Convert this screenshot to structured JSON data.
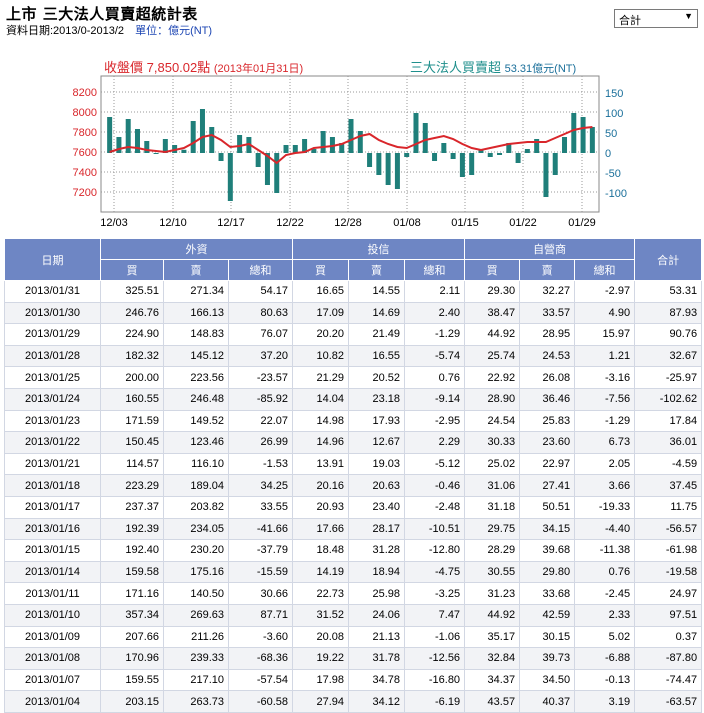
{
  "header": {
    "title": "上市 三大法人買賣超統計表",
    "date_label": "資料日期:2013/0-2013/2",
    "unit_label": "單位：億元(NT)",
    "selector_value": "合計"
  },
  "chart_data": {
    "type": "bar",
    "close_label": "收盤價",
    "close_value": "7,850.02點",
    "close_date": "(2013年01月31日)",
    "net_label": "三大法人買賣超",
    "net_value": "53.31億元(NT)",
    "y_left_ticks": [
      "8200",
      "8000",
      "7800",
      "7600",
      "7400",
      "7200"
    ],
    "y_right_ticks": [
      "150",
      "100",
      "50",
      "0",
      "-50",
      "-100"
    ],
    "x_ticks": [
      "12/03",
      "12/10",
      "12/17",
      "12/22",
      "12/28",
      "01/08",
      "01/15",
      "01/22",
      "01/29"
    ],
    "bars": [
      90,
      40,
      85,
      60,
      30,
      -2,
      35,
      20,
      8,
      80,
      110,
      65,
      -20,
      -120,
      45,
      40,
      -35,
      -80,
      -100,
      20,
      20,
      35,
      10,
      55,
      40,
      25,
      85,
      55,
      -35,
      -55,
      -80,
      -90,
      -10,
      100,
      75,
      -20,
      25,
      -15,
      -60,
      -55,
      10,
      -10,
      -5,
      25,
      -25,
      10,
      35,
      -110,
      -55,
      40,
      100,
      90,
      65
    ],
    "close_index": [
      7600,
      7630,
      7650,
      7640,
      7620,
      7610,
      7600,
      7620,
      7640,
      7690,
      7750,
      7770,
      7720,
      7650,
      7660,
      7680,
      7620,
      7560,
      7490,
      7570,
      7590,
      7600,
      7640,
      7650,
      7660,
      7680,
      7720,
      7760,
      7780,
      7720,
      7680,
      7650,
      7640,
      7680,
      7720,
      7740,
      7760,
      7730,
      7680,
      7640,
      7620,
      7640,
      7660,
      7680,
      7690,
      7700,
      7700,
      7700,
      7740,
      7780,
      7820,
      7840,
      7850
    ],
    "bar_color": "#1f7f7a",
    "line_color": "#d9262b"
  },
  "table": {
    "col_date": "日期",
    "group_foreign": "外資",
    "group_trust": "投信",
    "group_dealer": "自營商",
    "col_total": "合計",
    "buy": "買",
    "sell": "賣",
    "net": "總和",
    "rows": [
      [
        "2013/01/31",
        "325.51",
        "271.34",
        "54.17",
        "16.65",
        "14.55",
        "2.11",
        "29.30",
        "32.27",
        "-2.97",
        "53.31"
      ],
      [
        "2013/01/30",
        "246.76",
        "166.13",
        "80.63",
        "17.09",
        "14.69",
        "2.40",
        "38.47",
        "33.57",
        "4.90",
        "87.93"
      ],
      [
        "2013/01/29",
        "224.90",
        "148.83",
        "76.07",
        "20.20",
        "21.49",
        "-1.29",
        "44.92",
        "28.95",
        "15.97",
        "90.76"
      ],
      [
        "2013/01/28",
        "182.32",
        "145.12",
        "37.20",
        "10.82",
        "16.55",
        "-5.74",
        "25.74",
        "24.53",
        "1.21",
        "32.67"
      ],
      [
        "2013/01/25",
        "200.00",
        "223.56",
        "-23.57",
        "21.29",
        "20.52",
        "0.76",
        "22.92",
        "26.08",
        "-3.16",
        "-25.97"
      ],
      [
        "2013/01/24",
        "160.55",
        "246.48",
        "-85.92",
        "14.04",
        "23.18",
        "-9.14",
        "28.90",
        "36.46",
        "-7.56",
        "-102.62"
      ],
      [
        "2013/01/23",
        "171.59",
        "149.52",
        "22.07",
        "14.98",
        "17.93",
        "-2.95",
        "24.54",
        "25.83",
        "-1.29",
        "17.84"
      ],
      [
        "2013/01/22",
        "150.45",
        "123.46",
        "26.99",
        "14.96",
        "12.67",
        "2.29",
        "30.33",
        "23.60",
        "6.73",
        "36.01"
      ],
      [
        "2013/01/21",
        "114.57",
        "116.10",
        "-1.53",
        "13.91",
        "19.03",
        "-5.12",
        "25.02",
        "22.97",
        "2.05",
        "-4.59"
      ],
      [
        "2013/01/18",
        "223.29",
        "189.04",
        "34.25",
        "20.16",
        "20.63",
        "-0.46",
        "31.06",
        "27.41",
        "3.66",
        "37.45"
      ],
      [
        "2013/01/17",
        "237.37",
        "203.82",
        "33.55",
        "20.93",
        "23.40",
        "-2.48",
        "31.18",
        "50.51",
        "-19.33",
        "11.75"
      ],
      [
        "2013/01/16",
        "192.39",
        "234.05",
        "-41.66",
        "17.66",
        "28.17",
        "-10.51",
        "29.75",
        "34.15",
        "-4.40",
        "-56.57"
      ],
      [
        "2013/01/15",
        "192.40",
        "230.20",
        "-37.79",
        "18.48",
        "31.28",
        "-12.80",
        "28.29",
        "39.68",
        "-11.38",
        "-61.98"
      ],
      [
        "2013/01/14",
        "159.58",
        "175.16",
        "-15.59",
        "14.19",
        "18.94",
        "-4.75",
        "30.55",
        "29.80",
        "0.76",
        "-19.58"
      ],
      [
        "2013/01/11",
        "171.16",
        "140.50",
        "30.66",
        "22.73",
        "25.98",
        "-3.25",
        "31.23",
        "33.68",
        "-2.45",
        "24.97"
      ],
      [
        "2013/01/10",
        "357.34",
        "269.63",
        "87.71",
        "31.52",
        "24.06",
        "7.47",
        "44.92",
        "42.59",
        "2.33",
        "97.51"
      ],
      [
        "2013/01/09",
        "207.66",
        "211.26",
        "-3.60",
        "20.08",
        "21.13",
        "-1.06",
        "35.17",
        "30.15",
        "5.02",
        "0.37"
      ],
      [
        "2013/01/08",
        "170.96",
        "239.33",
        "-68.36",
        "19.22",
        "31.78",
        "-12.56",
        "32.84",
        "39.73",
        "-6.88",
        "-87.80"
      ],
      [
        "2013/01/07",
        "159.55",
        "217.10",
        "-57.54",
        "17.98",
        "34.78",
        "-16.80",
        "34.37",
        "34.50",
        "-0.13",
        "-74.47"
      ],
      [
        "2013/01/04",
        "203.15",
        "263.73",
        "-60.58",
        "27.94",
        "34.12",
        "-6.19",
        "43.57",
        "40.37",
        "3.19",
        "-63.57"
      ]
    ]
  }
}
